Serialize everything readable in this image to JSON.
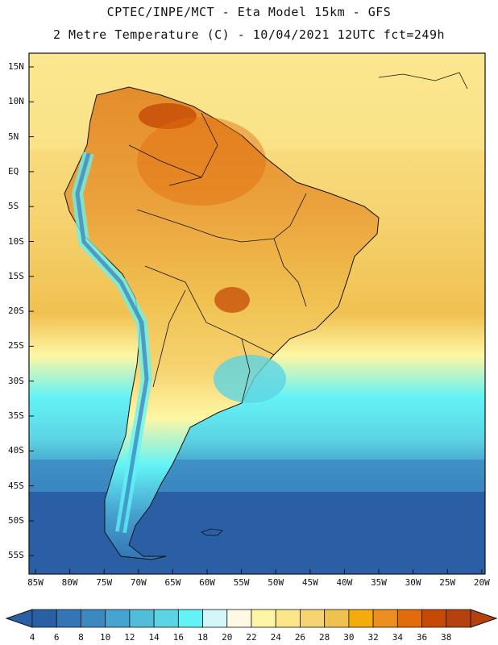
{
  "header": {
    "line1": "CPTEC/INPE/MCT -  Eta Model 15km - GFS",
    "line2": "2 Metre Temperature (C) - 10/04/2021 12UTC fct=249h"
  },
  "lat_labels": [
    "15N",
    "10N",
    "5N",
    "EQ",
    "5S",
    "10S",
    "15S",
    "20S",
    "25S",
    "30S",
    "35S",
    "40S",
    "45S",
    "50S",
    "55S"
  ],
  "lon_labels": [
    "85W",
    "80W",
    "75W",
    "70W",
    "65W",
    "60W",
    "55W",
    "50W",
    "45W",
    "40W",
    "35W",
    "30W",
    "25W",
    "20W"
  ],
  "colorbar": {
    "labels": [
      "4",
      "6",
      "8",
      "10",
      "12",
      "14",
      "16",
      "18",
      "20",
      "22",
      "24",
      "26",
      "28",
      "30",
      "32",
      "34",
      "36",
      "38"
    ],
    "colors": [
      "#2a5fa6",
      "#3375b5",
      "#3c89c2",
      "#47a3cf",
      "#52bcd9",
      "#5dd4e4",
      "#63f3f6",
      "#d3f6fb",
      "#fff8e4",
      "#fef6a4",
      "#fbe78a",
      "#f6d471",
      "#f0c151",
      "#f4ab0c",
      "#ec8f20",
      "#e26b0c",
      "#c64a06",
      "#b5420e"
    ]
  },
  "colors": {
    "ocean_north": "#fbe790",
    "ocean_mid": "#f6d471",
    "land_hot": "#e89a2e",
    "ocean_south": "#2a5fa6"
  }
}
